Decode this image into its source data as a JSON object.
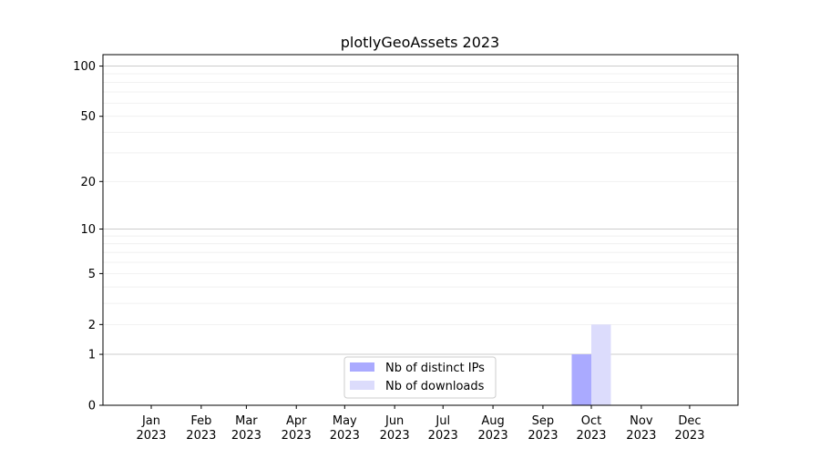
{
  "chart_data": {
    "type": "bar",
    "title": "plotlyGeoAssets 2023",
    "xlabel": "",
    "ylabel": "",
    "yscale": "log(1+y)",
    "ylim": [
      0,
      117
    ],
    "y_ticks": [
      0,
      1,
      2,
      5,
      10,
      20,
      50,
      100
    ],
    "grid": true,
    "legend_placement": "lower-center",
    "categories": [
      "Jan\n2023",
      "Feb\n2023",
      "Mar\n2023",
      "Apr\n2023",
      "May\n2023",
      "Jun\n2023",
      "Jul\n2023",
      "Aug\n2023",
      "Sep\n2023",
      "Oct\n2023",
      "Nov\n2023",
      "Dec\n2023"
    ],
    "tick_labels": [
      {
        "month": "Jan",
        "year": "2023"
      },
      {
        "month": "Feb",
        "year": "2023"
      },
      {
        "month": "Mar",
        "year": "2023"
      },
      {
        "month": "Apr",
        "year": "2023"
      },
      {
        "month": "May",
        "year": "2023"
      },
      {
        "month": "Jun",
        "year": "2023"
      },
      {
        "month": "Jul",
        "year": "2023"
      },
      {
        "month": "Aug",
        "year": "2023"
      },
      {
        "month": "Sep",
        "year": "2023"
      },
      {
        "month": "Oct",
        "year": "2023"
      },
      {
        "month": "Nov",
        "year": "2023"
      },
      {
        "month": "Dec",
        "year": "2023"
      }
    ],
    "series": [
      {
        "name": "Nb of distinct IPs",
        "color": "#aaaaff",
        "values": [
          0,
          0,
          0,
          0,
          0,
          0,
          0,
          0,
          0,
          1,
          0,
          0
        ]
      },
      {
        "name": "Nb of downloads",
        "color": "#dcdcfc",
        "values": [
          0,
          0,
          0,
          0,
          0,
          0,
          0,
          0,
          0,
          2,
          0,
          0
        ]
      }
    ]
  }
}
